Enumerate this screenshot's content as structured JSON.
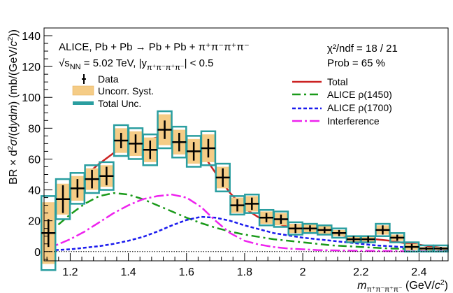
{
  "chart_data": {
    "type": "scatter",
    "xlabel": "m_{π⁺π⁻π⁺π⁻} (GeV/c²)",
    "ylabel": "BR × d²σ/(dydm) (mb/(GeV/c²))",
    "xlim": [
      1.11,
      2.5
    ],
    "ylim": [
      -6,
      145
    ],
    "x_ticks": [
      1.2,
      1.4,
      1.6,
      1.8,
      2,
      2.2,
      2.4
    ],
    "x_tick_labels": [
      "1.2",
      "1.4",
      "1.6",
      "1.8",
      "2",
      "2.2",
      "2.4"
    ],
    "y_ticks": [
      0,
      20,
      40,
      60,
      80,
      100,
      120,
      140
    ],
    "y_tick_labels": [
      "0",
      "20",
      "40",
      "60",
      "80",
      "100",
      "120",
      "140"
    ],
    "grid": false,
    "annotations": {
      "line1": "ALICE, Pb + Pb → Pb + Pb + π⁺π⁻π⁺π⁻",
      "line2_prefix": "√s",
      "line2_sub": "NN",
      "line2_rest": " = 5.02 TeV, |y",
      "line2_sub2": "π⁺π⁻π⁺π⁻",
      "line2_end": "| < 0.5",
      "chi2": "χ²/ndf = 18 / 21",
      "prob": "Prob = 65 %"
    },
    "legend_left": {
      "placement": "top-left",
      "items": [
        {
          "label": "Data",
          "style": "data"
        },
        {
          "label": "Uncorr. Syst.",
          "style": "syst"
        },
        {
          "label": "Total Unc.",
          "style": "total"
        }
      ]
    },
    "legend_right": {
      "placement": "top-right",
      "items": [
        {
          "label": "Total",
          "style": "solid",
          "color": "#cc2222"
        },
        {
          "label": "ALICE ρ(1450)",
          "style": "dash",
          "color": "#1a9a1a"
        },
        {
          "label": "ALICE ρ(1700)",
          "style": "dot",
          "color": "#1a1aee"
        },
        {
          "label": "Interference",
          "style": "longdash",
          "color": "#ee22ee"
        }
      ]
    },
    "colors": {
      "data": "#000000",
      "syst_fill": "#f5cc86",
      "total_box": "#2a9ea0"
    },
    "series": [
      {
        "name": "Data",
        "x": [
          1.125,
          1.175,
          1.225,
          1.275,
          1.325,
          1.375,
          1.425,
          1.475,
          1.525,
          1.575,
          1.625,
          1.675,
          1.725,
          1.775,
          1.825,
          1.875,
          1.925,
          1.975,
          2.025,
          2.075,
          2.125,
          2.175,
          2.225,
          2.275,
          2.325,
          2.375,
          2.425,
          2.475
        ],
        "y": [
          12,
          34,
          41,
          47,
          49,
          72,
          70,
          66,
          79,
          71,
          65,
          67,
          48,
          30,
          31,
          22,
          21,
          15,
          15,
          14,
          12,
          8,
          8,
          14,
          9,
          3,
          2,
          2
        ],
        "stat_err": [
          9,
          9,
          6,
          6,
          6,
          5,
          6,
          6,
          6,
          6,
          6,
          6,
          6,
          4,
          4,
          3,
          3,
          3,
          2,
          2,
          2,
          2,
          2,
          3,
          2,
          2,
          1,
          1
        ],
        "total_err": [
          24,
          13,
          10,
          9,
          9,
          10,
          10,
          10,
          12,
          10,
          10,
          11,
          9,
          6,
          6,
          5,
          5,
          4,
          3,
          3,
          3,
          2,
          2,
          4,
          3,
          3,
          2,
          2
        ],
        "syst_err": [
          20,
          10,
          8,
          7,
          7,
          8,
          8,
          8,
          10,
          8,
          8,
          9,
          7,
          5,
          5,
          4,
          4,
          3,
          3,
          3,
          2,
          2,
          2,
          3,
          2,
          2,
          1,
          1
        ]
      },
      {
        "name": "Total",
        "x": [
          1.11,
          1.15,
          1.2,
          1.25,
          1.3,
          1.35,
          1.4,
          1.45,
          1.5,
          1.55,
          1.6,
          1.65,
          1.7,
          1.75,
          1.8,
          1.85,
          1.9,
          1.95,
          2.0,
          2.05,
          2.1,
          2.15,
          2.2,
          2.25,
          2.3,
          2.35,
          2.4,
          2.45,
          2.5
        ],
        "y": [
          14,
          26,
          39,
          49,
          57,
          64,
          69,
          72,
          74,
          75,
          73,
          65,
          51,
          38,
          28,
          22,
          19,
          16,
          14,
          13,
          12,
          10,
          9,
          8,
          7,
          5.5,
          4.5,
          3,
          2
        ]
      },
      {
        "name": "ALICE ρ(1450)",
        "x": [
          1.11,
          1.15,
          1.2,
          1.25,
          1.3,
          1.35,
          1.4,
          1.45,
          1.5,
          1.55,
          1.6,
          1.65,
          1.7,
          1.75,
          1.8,
          1.85,
          1.9,
          1.95,
          2.0,
          2.05,
          2.1,
          2.15,
          2.2,
          2.25,
          2.3,
          2.35,
          2.4,
          2.45,
          2.5
        ],
        "y": [
          11,
          16,
          24,
          31,
          36,
          38,
          37,
          34,
          30,
          26,
          22,
          18.5,
          15.5,
          13,
          11,
          9.5,
          8,
          7,
          6,
          5,
          4,
          3.5,
          3,
          2.5,
          2,
          1.8,
          1.5,
          1.2,
          1
        ]
      },
      {
        "name": "ALICE ρ(1700)",
        "x": [
          1.11,
          1.15,
          1.2,
          1.25,
          1.3,
          1.35,
          1.4,
          1.45,
          1.5,
          1.55,
          1.6,
          1.65,
          1.7,
          1.75,
          1.8,
          1.85,
          1.9,
          1.95,
          2.0,
          2.05,
          2.1,
          2.15,
          2.2,
          2.25,
          2.3,
          2.35,
          2.4,
          2.45,
          2.5
        ],
        "y": [
          0.5,
          1,
          1.5,
          2.5,
          3.5,
          5,
          7,
          9.5,
          13,
          17,
          20.5,
          22.5,
          22,
          20,
          17,
          14.5,
          12,
          10.5,
          9,
          8,
          7,
          6,
          5,
          4,
          3.5,
          2.8,
          2.2,
          1.6,
          1.2
        ]
      },
      {
        "name": "Interference",
        "x": [
          1.11,
          1.15,
          1.2,
          1.25,
          1.3,
          1.35,
          1.4,
          1.45,
          1.5,
          1.55,
          1.6,
          1.65,
          1.7,
          1.75,
          1.8,
          1.85,
          1.9,
          1.95,
          2.0,
          2.05,
          2.1,
          2.15,
          2.2,
          2.25,
          2.3,
          2.35,
          2.4,
          2.45,
          2.5
        ],
        "y": [
          2,
          4,
          8,
          13,
          19,
          25,
          30,
          34,
          36,
          37,
          35,
          29,
          20,
          12,
          7,
          4.5,
          3,
          2,
          1.5,
          1,
          0.8,
          0.6,
          0.5,
          0.4,
          0.3,
          0.2,
          0.2,
          0.1,
          0.1
        ]
      }
    ]
  }
}
